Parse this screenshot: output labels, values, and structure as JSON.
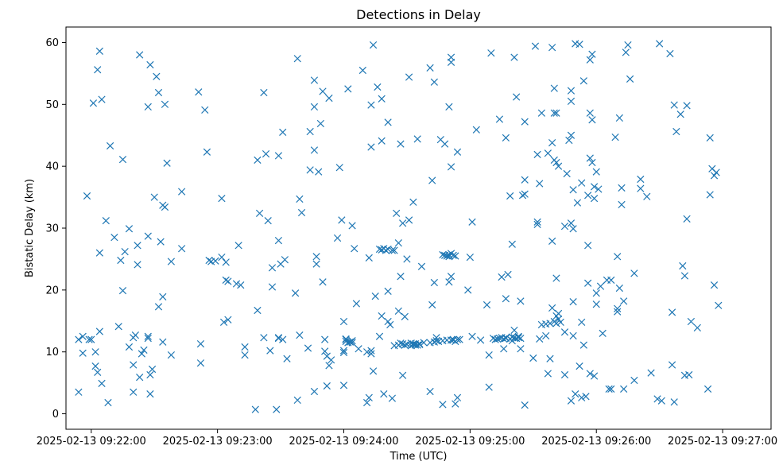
{
  "chart_data": {
    "type": "scatter",
    "title": "Detections in Delay",
    "xlabel": "Time (UTC)",
    "ylabel": "Bistatic Delay (km)",
    "x_unit": "seconds after 2025-02-13 09:22:00",
    "xlim": [
      -12,
      323
    ],
    "ylim": [
      -2.5,
      62.5
    ],
    "x_ticks": [
      {
        "value": 0,
        "label": "2025-02-13 09:22:00"
      },
      {
        "value": 60,
        "label": "2025-02-13 09:23:00"
      },
      {
        "value": 120,
        "label": "2025-02-13 09:24:00"
      },
      {
        "value": 180,
        "label": "2025-02-13 09:25:00"
      },
      {
        "value": 240,
        "label": "2025-02-13 09:26:00"
      },
      {
        "value": 300,
        "label": "2025-02-13 09:27:00"
      }
    ],
    "y_ticks": [
      0,
      10,
      20,
      30,
      40,
      50,
      60
    ],
    "grid": false,
    "marker": "x",
    "color": "#1f77b4",
    "points": [
      [
        -6,
        3.5
      ],
      [
        -6,
        12
      ],
      [
        -4,
        12.5
      ],
      [
        -4,
        9.8
      ],
      [
        -2,
        35.2
      ],
      [
        -1,
        12
      ],
      [
        0,
        12
      ],
      [
        1,
        50.2
      ],
      [
        2,
        10
      ],
      [
        2,
        7.7
      ],
      [
        3,
        6.7
      ],
      [
        3,
        55.6
      ],
      [
        4,
        26
      ],
      [
        4,
        13.3
      ],
      [
        4,
        58.6
      ],
      [
        5,
        4.9
      ],
      [
        5,
        50.8
      ],
      [
        7,
        31.2
      ],
      [
        8,
        1.8
      ],
      [
        9,
        43.3
      ],
      [
        11,
        28.5
      ],
      [
        13,
        14.1
      ],
      [
        14,
        24.8
      ],
      [
        15,
        41.1
      ],
      [
        15,
        19.9
      ],
      [
        16,
        26.2
      ],
      [
        18,
        10.8
      ],
      [
        18,
        29.9
      ],
      [
        20,
        12.3
      ],
      [
        20,
        7.9
      ],
      [
        20,
        3.5
      ],
      [
        21,
        12.7
      ],
      [
        22,
        27.2
      ],
      [
        22,
        24.1
      ],
      [
        23,
        5.9
      ],
      [
        23,
        58
      ],
      [
        24,
        9.7
      ],
      [
        25,
        10.3
      ],
      [
        27,
        12.2
      ],
      [
        27,
        12.5
      ],
      [
        27,
        28.7
      ],
      [
        27,
        49.6
      ],
      [
        28,
        6.3
      ],
      [
        28,
        3.2
      ],
      [
        28,
        56.4
      ],
      [
        29,
        7.2
      ],
      [
        30,
        35
      ],
      [
        31,
        54.5
      ],
      [
        32,
        17.3
      ],
      [
        32,
        51.9
      ],
      [
        33,
        27.8
      ],
      [
        34,
        33.7
      ],
      [
        34,
        11.6
      ],
      [
        34,
        18.9
      ],
      [
        35,
        50
      ],
      [
        35,
        33.4
      ],
      [
        36,
        40.5
      ],
      [
        38,
        24.6
      ],
      [
        38,
        9.5
      ],
      [
        43,
        35.9
      ],
      [
        43,
        26.7
      ],
      [
        51,
        52
      ],
      [
        52,
        11.3
      ],
      [
        52,
        8.2
      ],
      [
        54,
        49.1
      ],
      [
        55,
        42.3
      ],
      [
        56,
        24.8
      ],
      [
        57,
        24.6
      ],
      [
        59,
        24.7
      ],
      [
        62,
        34.8
      ],
      [
        62,
        25.3
      ],
      [
        63,
        14.8
      ],
      [
        64,
        24.5
      ],
      [
        64,
        21.6
      ],
      [
        65,
        21.4
      ],
      [
        65,
        15.2
      ],
      [
        69,
        21
      ],
      [
        70,
        27.2
      ],
      [
        71,
        20.8
      ],
      [
        73,
        9.5
      ],
      [
        73,
        10.8
      ],
      [
        78,
        0.7
      ],
      [
        79,
        41
      ],
      [
        79,
        16.7
      ],
      [
        80,
        32.4
      ],
      [
        82,
        12.3
      ],
      [
        82,
        51.9
      ],
      [
        83,
        42
      ],
      [
        84,
        31.2
      ],
      [
        85,
        10.2
      ],
      [
        86,
        20.5
      ],
      [
        86,
        23.6
      ],
      [
        88,
        0.7
      ],
      [
        89,
        12.2
      ],
      [
        89,
        28
      ],
      [
        89,
        41.7
      ],
      [
        89,
        12.3
      ],
      [
        90,
        24.2
      ],
      [
        91,
        45.5
      ],
      [
        91,
        12
      ],
      [
        92,
        24.9
      ],
      [
        93,
        8.9
      ],
      [
        97,
        19.5
      ],
      [
        98,
        57.4
      ],
      [
        98,
        2.2
      ],
      [
        99,
        12.7
      ],
      [
        99,
        34.7
      ],
      [
        100,
        32.5
      ],
      [
        103,
        10.6
      ],
      [
        104,
        45.6
      ],
      [
        104,
        39.4
      ],
      [
        106,
        3.6
      ],
      [
        106,
        42.6
      ],
      [
        106,
        49.6
      ],
      [
        106,
        53.9
      ],
      [
        107,
        25.4
      ],
      [
        107,
        24.2
      ],
      [
        108,
        39.1
      ],
      [
        109,
        46.9
      ],
      [
        110,
        21.3
      ],
      [
        110,
        52.1
      ],
      [
        111,
        10.1
      ],
      [
        111,
        12
      ],
      [
        112,
        9.3
      ],
      [
        112,
        4.5
      ],
      [
        113,
        7.8
      ],
      [
        113,
        51
      ],
      [
        114,
        8.7
      ],
      [
        117,
        28.4
      ],
      [
        118,
        39.8
      ],
      [
        119,
        31.3
      ],
      [
        120,
        4.6
      ],
      [
        120,
        14.9
      ],
      [
        120,
        10.2
      ],
      [
        120,
        9.9
      ],
      [
        121,
        12
      ],
      [
        121,
        11.7
      ],
      [
        121,
        12.1
      ],
      [
        122,
        52.5
      ],
      [
        122,
        11.5
      ],
      [
        123,
        11.6
      ],
      [
        124,
        11.5
      ],
      [
        124,
        11.8
      ],
      [
        124,
        30.4
      ],
      [
        125,
        26.7
      ],
      [
        126,
        17.8
      ],
      [
        127,
        10.5
      ],
      [
        129,
        55.5
      ],
      [
        131,
        10
      ],
      [
        131,
        1.8
      ],
      [
        132,
        2.6
      ],
      [
        132,
        25.2
      ],
      [
        133,
        9.7
      ],
      [
        133,
        43.1
      ],
      [
        133,
        10.2
      ],
      [
        133,
        49.9
      ],
      [
        134,
        59.6
      ],
      [
        134,
        6.9
      ],
      [
        135,
        19
      ],
      [
        136,
        52.8
      ],
      [
        137,
        26.6
      ],
      [
        137,
        12.5
      ],
      [
        138,
        26.5
      ],
      [
        138,
        50.9
      ],
      [
        138,
        44.1
      ],
      [
        138,
        15.8
      ],
      [
        139,
        26.7
      ],
      [
        139,
        3.2
      ],
      [
        140,
        26.4
      ],
      [
        141,
        14.9
      ],
      [
        141,
        26.6
      ],
      [
        141,
        47.1
      ],
      [
        141,
        19.8
      ],
      [
        142,
        14.4
      ],
      [
        143,
        2.5
      ],
      [
        143,
        26.4
      ],
      [
        144,
        11
      ],
      [
        144,
        26.4
      ],
      [
        145,
        32.4
      ],
      [
        146,
        16.6
      ],
      [
        146,
        27.6
      ],
      [
        146,
        11.1
      ],
      [
        147,
        43.6
      ],
      [
        147,
        11.4
      ],
      [
        147,
        22.2
      ],
      [
        148,
        11.3
      ],
      [
        148,
        6.2
      ],
      [
        148,
        30.8
      ],
      [
        149,
        15.7
      ],
      [
        149,
        11.1
      ],
      [
        150,
        11.2
      ],
      [
        150,
        25
      ],
      [
        151,
        54.4
      ],
      [
        151,
        31.3
      ],
      [
        152,
        11.4
      ],
      [
        152,
        11
      ],
      [
        153,
        34.2
      ],
      [
        153,
        11.2
      ],
      [
        153,
        11.3
      ],
      [
        154,
        11.1
      ],
      [
        154,
        11.3
      ],
      [
        155,
        11.1
      ],
      [
        155,
        44.4
      ],
      [
        156,
        11.3
      ],
      [
        156,
        11.2
      ],
      [
        157,
        23.8
      ],
      [
        158,
        11.5
      ],
      [
        161,
        55.9
      ],
      [
        161,
        3.6
      ],
      [
        161,
        11.5
      ],
      [
        162,
        17.6
      ],
      [
        162,
        37.7
      ],
      [
        163,
        21.2
      ],
      [
        163,
        53.6
      ],
      [
        163,
        11.6
      ],
      [
        164,
        11.8
      ],
      [
        164,
        12.3
      ],
      [
        165,
        11.7
      ],
      [
        166,
        44.3
      ],
      [
        167,
        11.8
      ],
      [
        167,
        25.7
      ],
      [
        167,
        1.5
      ],
      [
        168,
        43.6
      ],
      [
        168,
        25.6
      ],
      [
        169,
        25.5
      ],
      [
        169,
        11.9
      ],
      [
        170,
        25.7
      ],
      [
        170,
        49.6
      ],
      [
        170,
        21.3
      ],
      [
        170,
        25.4
      ],
      [
        171,
        11.9
      ],
      [
        171,
        25.9
      ],
      [
        171,
        39.9
      ],
      [
        171,
        56.8
      ],
      [
        171,
        22.2
      ],
      [
        171,
        57.6
      ],
      [
        172,
        25.6
      ],
      [
        172,
        12
      ],
      [
        172,
        11.9
      ],
      [
        173,
        11.7
      ],
      [
        173,
        25.5
      ],
      [
        173,
        1.6
      ],
      [
        174,
        12
      ],
      [
        174,
        42.3
      ],
      [
        174,
        2.6
      ],
      [
        175,
        12
      ],
      [
        179,
        20
      ],
      [
        180,
        25.3
      ],
      [
        181,
        12.5
      ],
      [
        181,
        31
      ],
      [
        183,
        45.9
      ],
      [
        185,
        11.9
      ],
      [
        188,
        17.6
      ],
      [
        189,
        4.3
      ],
      [
        189,
        9.5
      ],
      [
        190,
        58.3
      ],
      [
        191,
        12.2
      ],
      [
        192,
        12
      ],
      [
        193,
        12.1
      ],
      [
        194,
        12.2
      ],
      [
        194,
        47.6
      ],
      [
        195,
        22.1
      ],
      [
        195,
        12.3
      ],
      [
        196,
        12.1
      ],
      [
        196,
        10.5
      ],
      [
        197,
        12.2
      ],
      [
        197,
        44.6
      ],
      [
        197,
        12.3
      ],
      [
        197,
        18.6
      ],
      [
        198,
        22.5
      ],
      [
        199,
        35.2
      ],
      [
        199,
        12.1
      ],
      [
        200,
        12.4
      ],
      [
        200,
        27.4
      ],
      [
        200,
        11.8
      ],
      [
        201,
        57.6
      ],
      [
        201,
        13.5
      ],
      [
        201,
        12.3
      ],
      [
        202,
        12.2
      ],
      [
        202,
        51.2
      ],
      [
        203,
        12.3
      ],
      [
        203,
        12.5
      ],
      [
        204,
        12.2
      ],
      [
        204,
        18.2
      ],
      [
        204,
        10.5
      ],
      [
        205,
        35.3
      ],
      [
        206,
        35.5
      ],
      [
        206,
        1.4
      ],
      [
        206,
        37.8
      ],
      [
        206,
        47.2
      ],
      [
        210,
        9
      ],
      [
        211,
        59.4
      ],
      [
        212,
        30.6
      ],
      [
        212,
        41.9
      ],
      [
        212,
        31
      ],
      [
        213,
        12.1
      ],
      [
        213,
        37.2
      ],
      [
        214,
        14.4
      ],
      [
        214,
        48.6
      ],
      [
        216,
        12.6
      ],
      [
        216,
        14.5
      ],
      [
        217,
        42.1
      ],
      [
        217,
        6.5
      ],
      [
        218,
        8.9
      ],
      [
        218,
        14.6
      ],
      [
        219,
        59.2
      ],
      [
        219,
        27.9
      ],
      [
        219,
        43.8
      ],
      [
        219,
        17.1
      ],
      [
        220,
        52.6
      ],
      [
        220,
        14.9
      ],
      [
        220,
        41
      ],
      [
        220,
        48.6
      ],
      [
        221,
        14.6
      ],
      [
        221,
        40.6
      ],
      [
        221,
        21.9
      ],
      [
        221,
        48.6
      ],
      [
        221,
        15.8
      ],
      [
        222,
        16.2
      ],
      [
        222,
        40
      ],
      [
        222,
        15.3
      ],
      [
        223,
        14.8
      ],
      [
        225,
        30.3
      ],
      [
        225,
        6.3
      ],
      [
        225,
        13.2
      ],
      [
        226,
        38.8
      ],
      [
        227,
        44.2
      ],
      [
        228,
        52.2
      ],
      [
        228,
        50.5
      ],
      [
        228,
        45
      ],
      [
        228,
        30.8
      ],
      [
        228,
        2.1
      ],
      [
        229,
        12.6
      ],
      [
        229,
        36.2
      ],
      [
        229,
        18.1
      ],
      [
        229,
        29.9
      ],
      [
        230,
        3.2
      ],
      [
        230,
        59.8
      ],
      [
        231,
        34.1
      ],
      [
        232,
        59.7
      ],
      [
        232,
        7.7
      ],
      [
        233,
        2.6
      ],
      [
        233,
        37.3
      ],
      [
        233,
        14.8
      ],
      [
        234,
        53.8
      ],
      [
        234,
        11.1
      ],
      [
        235,
        2.8
      ],
      [
        236,
        35.3
      ],
      [
        236,
        27.2
      ],
      [
        236,
        21.1
      ],
      [
        237,
        48.6
      ],
      [
        237,
        6.5
      ],
      [
        237,
        57.2
      ],
      [
        237,
        41.3
      ],
      [
        238,
        47.5
      ],
      [
        238,
        40.6
      ],
      [
        238,
        58.1
      ],
      [
        239,
        36.7
      ],
      [
        239,
        6.1
      ],
      [
        239,
        34.8
      ],
      [
        240,
        39.1
      ],
      [
        240,
        19.5
      ],
      [
        240,
        17.7
      ],
      [
        241,
        36.3
      ],
      [
        242,
        20.6
      ],
      [
        243,
        13
      ],
      [
        245,
        21.6
      ],
      [
        246,
        4
      ],
      [
        247,
        4
      ],
      [
        247,
        21.6
      ],
      [
        249,
        44.7
      ],
      [
        250,
        17
      ],
      [
        250,
        16.5
      ],
      [
        250,
        25.4
      ],
      [
        251,
        20.3
      ],
      [
        251,
        47.8
      ],
      [
        252,
        33.8
      ],
      [
        252,
        36.5
      ],
      [
        253,
        18.2
      ],
      [
        253,
        4
      ],
      [
        254,
        58.4
      ],
      [
        255,
        59.6
      ],
      [
        256,
        54.1
      ],
      [
        258,
        22.7
      ],
      [
        258,
        5.4
      ],
      [
        261,
        37.9
      ],
      [
        261,
        36.4
      ],
      [
        264,
        35.1
      ],
      [
        266,
        6.6
      ],
      [
        269,
        2.4
      ],
      [
        270,
        59.8
      ],
      [
        271,
        2.1
      ],
      [
        275,
        58.2
      ],
      [
        276,
        16.4
      ],
      [
        276,
        7.9
      ],
      [
        277,
        1.9
      ],
      [
        277,
        49.9
      ],
      [
        278,
        45.6
      ],
      [
        280,
        48.4
      ],
      [
        281,
        23.9
      ],
      [
        282,
        22.3
      ],
      [
        282,
        6.2
      ],
      [
        283,
        49.8
      ],
      [
        283,
        31.5
      ],
      [
        284,
        6.3
      ],
      [
        285,
        14.9
      ],
      [
        288,
        13.9
      ],
      [
        293,
        4
      ],
      [
        294,
        35.4
      ],
      [
        294,
        44.6
      ],
      [
        295,
        39.6
      ],
      [
        296,
        38.5
      ],
      [
        296,
        20.8
      ],
      [
        297,
        39
      ],
      [
        298,
        17.5
      ]
    ]
  }
}
